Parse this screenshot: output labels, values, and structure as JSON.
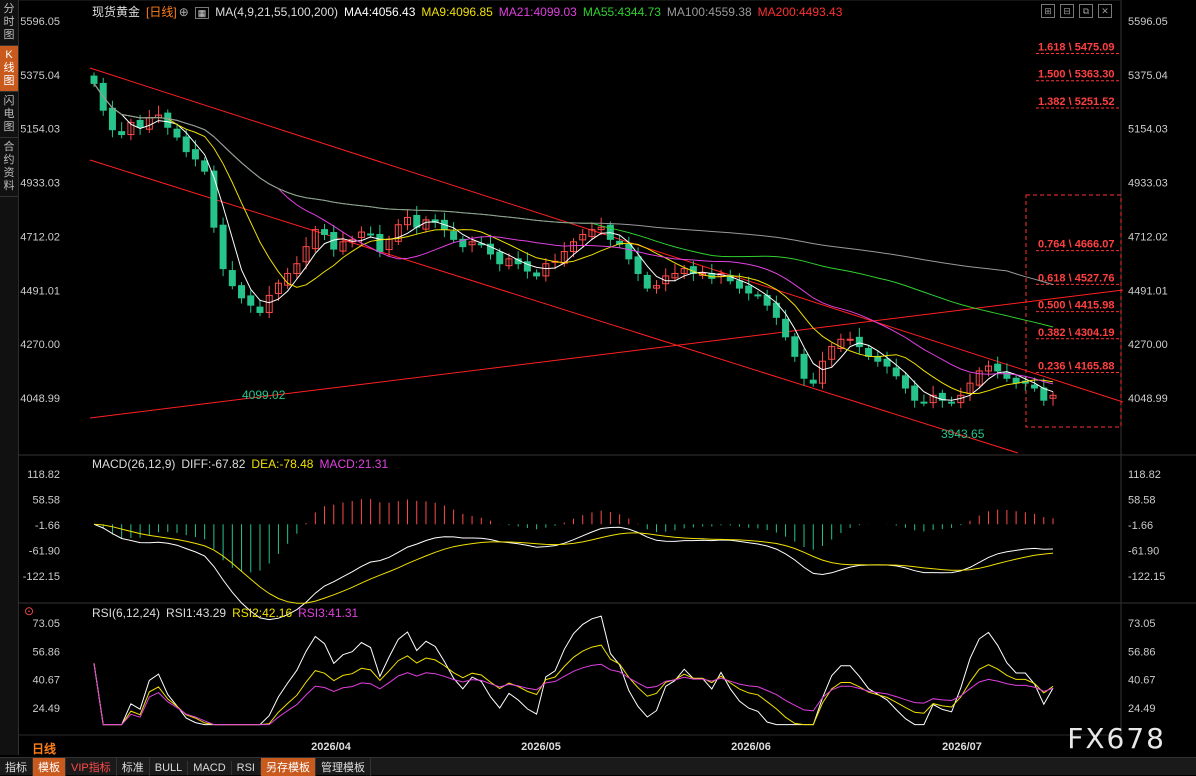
{
  "sidebar": {
    "tabs": [
      {
        "label": "分时图",
        "active": false
      },
      {
        "label": "K线图",
        "active": true
      },
      {
        "label": "闪电图",
        "active": false
      },
      {
        "label": "合约资料",
        "active": false
      }
    ]
  },
  "header": {
    "instrument": "现货黄金",
    "period": "[日线]",
    "ma_params": "MA(4,9,21,55,100,200)",
    "ma_values": [
      {
        "label": "MA4:4056.43",
        "color": "#ffffff"
      },
      {
        "label": "MA9:4096.85",
        "color": "#f0e000"
      },
      {
        "label": "MA21:4099.03",
        "color": "#e040e0"
      },
      {
        "label": "MA55:4344.73",
        "color": "#30d030"
      },
      {
        "label": "MA100:4559.38",
        "color": "#999999"
      },
      {
        "label": "MA200:4493.43",
        "color": "#ff3030"
      }
    ]
  },
  "macd_header": {
    "params": "MACD(26,12,9)",
    "diff": "DIFF:-67.82",
    "dea": "DEA:-78.48",
    "macd": "MACD:21.31"
  },
  "rsi_header": {
    "params": "RSI(6,12,24)",
    "rsi1": "RSI1:43.29",
    "rsi2": "RSI2:42.16",
    "rsi3": "RSI3:41.31"
  },
  "chart_data": {
    "type": "candlestick",
    "price_axis": {
      "ticks": [
        "5596.05",
        "5375.04",
        "5154.03",
        "4933.03",
        "4712.02",
        "4491.01",
        "4270.00",
        "4048.99"
      ],
      "ylim": [
        3830,
        5596.05
      ]
    },
    "x_labels": [
      "2026/04",
      "2026/05",
      "2026/06",
      "2026/07"
    ],
    "annotations": {
      "low1": "4099.02",
      "low2": "3943.65"
    },
    "fib_levels": [
      {
        "label": "1.618 \\ 5475.09",
        "value": 5475.09
      },
      {
        "label": "1.500 \\ 5363.30",
        "value": 5363.3
      },
      {
        "label": "1.382 \\ 5251.52",
        "value": 5251.52
      },
      {
        "label": "0.764 \\ 4666.07",
        "value": 4666.07
      },
      {
        "label": "0.618 \\ 4527.76",
        "value": 4527.76
      },
      {
        "label": "0.500 \\ 4415.98",
        "value": 4415.98
      },
      {
        "label": "0.382 \\ 4304.19",
        "value": 4304.19
      },
      {
        "label": "0.236 \\ 4165.88",
        "value": 4165.88
      }
    ],
    "closes": [
      5340,
      5230,
      5150,
      5130,
      5180,
      5160,
      5200,
      5210,
      5160,
      5120,
      5060,
      5030,
      4980,
      4750,
      4580,
      4510,
      4460,
      4430,
      4400,
      4470,
      4520,
      4560,
      4600,
      4670,
      4740,
      4720,
      4660,
      4690,
      4700,
      4730,
      4720,
      4650,
      4700,
      4760,
      4790,
      4750,
      4780,
      4770,
      4740,
      4700,
      4670,
      4690,
      4680,
      4640,
      4600,
      4620,
      4600,
      4570,
      4550,
      4600,
      4610,
      4650,
      4690,
      4720,
      4740,
      4750,
      4700,
      4680,
      4620,
      4560,
      4500,
      4510,
      4550,
      4560,
      4580,
      4560,
      4560,
      4540,
      4560,
      4530,
      4500,
      4480,
      4470,
      4430,
      4380,
      4300,
      4220,
      4130,
      4110,
      4200,
      4260,
      4290,
      4290,
      4260,
      4220,
      4200,
      4180,
      4140,
      4090,
      4040,
      4030,
      4060,
      4040,
      4030,
      4060,
      4110,
      4160,
      4180,
      4160,
      4130,
      4110,
      4110,
      4090,
      4040,
      4060
    ],
    "ma_series": [
      {
        "name": "MA4",
        "color": "#ffffff"
      },
      {
        "name": "MA9",
        "color": "#f0e000"
      },
      {
        "name": "MA21",
        "color": "#e040e0"
      },
      {
        "name": "MA55",
        "color": "#30d030"
      },
      {
        "name": "MA100",
        "color": "#999999"
      },
      {
        "name": "MA200",
        "color": "#ff3030"
      }
    ],
    "macd_axis": {
      "ticks": [
        "118.82",
        "58.58",
        "-1.66",
        "-61.90",
        "-122.15"
      ],
      "ylim": [
        -160,
        125
      ]
    },
    "rsi_axis": {
      "ticks": [
        "73.05",
        "56.86",
        "40.67",
        "24.49"
      ],
      "ylim": [
        15,
        80
      ]
    }
  },
  "footer": {
    "period_label": "日线",
    "tabs": [
      {
        "label": "指标",
        "style": ""
      },
      {
        "label": "模板",
        "style": "orange"
      },
      {
        "label": "VIP指标",
        "style": "red"
      },
      {
        "label": "标准",
        "style": ""
      },
      {
        "label": "BULL",
        "style": ""
      },
      {
        "label": "MACD",
        "style": ""
      },
      {
        "label": "RSI",
        "style": ""
      },
      {
        "label": "另存模板",
        "style": "orange"
      },
      {
        "label": "管理模板",
        "style": ""
      }
    ],
    "brand": "FX678"
  }
}
